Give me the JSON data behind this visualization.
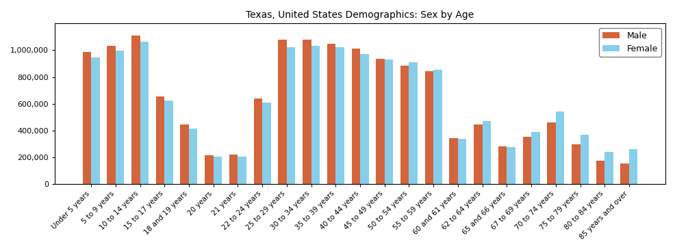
{
  "title": "Texas, United States Demographics: Sex by Age",
  "categories": [
    "Under 5 years",
    "5 to 9 years",
    "10 to 14 years",
    "15 to 17 years",
    "18 and 19 years",
    "20 years",
    "21 years",
    "22 to 24 years",
    "25 to 29 years",
    "30 to 34 years",
    "35 to 39 years",
    "40 to 44 years",
    "45 to 49 years",
    "50 to 54 years",
    "55 to 59 years",
    "60 and 61 years",
    "62 to 64 years",
    "65 and 66 years",
    "67 to 69 years",
    "70 to 74 years",
    "75 to 79 years",
    "80 to 84 years",
    "85 years and over"
  ],
  "male": [
    988000,
    1035000,
    1110000,
    655000,
    445000,
    215000,
    218000,
    638000,
    1078000,
    1080000,
    1048000,
    1012000,
    938000,
    883000,
    845000,
    345000,
    443000,
    283000,
    355000,
    458000,
    298000,
    174000,
    152000
  ],
  "female": [
    948000,
    995000,
    1062000,
    624000,
    413000,
    202000,
    207000,
    610000,
    1025000,
    1035000,
    1025000,
    970000,
    930000,
    908000,
    852000,
    340000,
    470000,
    275000,
    388000,
    542000,
    368000,
    238000,
    262000
  ],
  "male_color": "#d4643c",
  "female_color": "#87ceeb",
  "bar_width": 0.35,
  "ylim": [
    0,
    1200000
  ],
  "yticks": [
    0,
    200000,
    400000,
    600000,
    800000,
    1000000
  ],
  "legend_labels": [
    "Male",
    "Female"
  ],
  "title_fontsize": 10,
  "tick_fontsize": 7.5,
  "ytick_fontsize": 8,
  "background_color": "#ffffff"
}
